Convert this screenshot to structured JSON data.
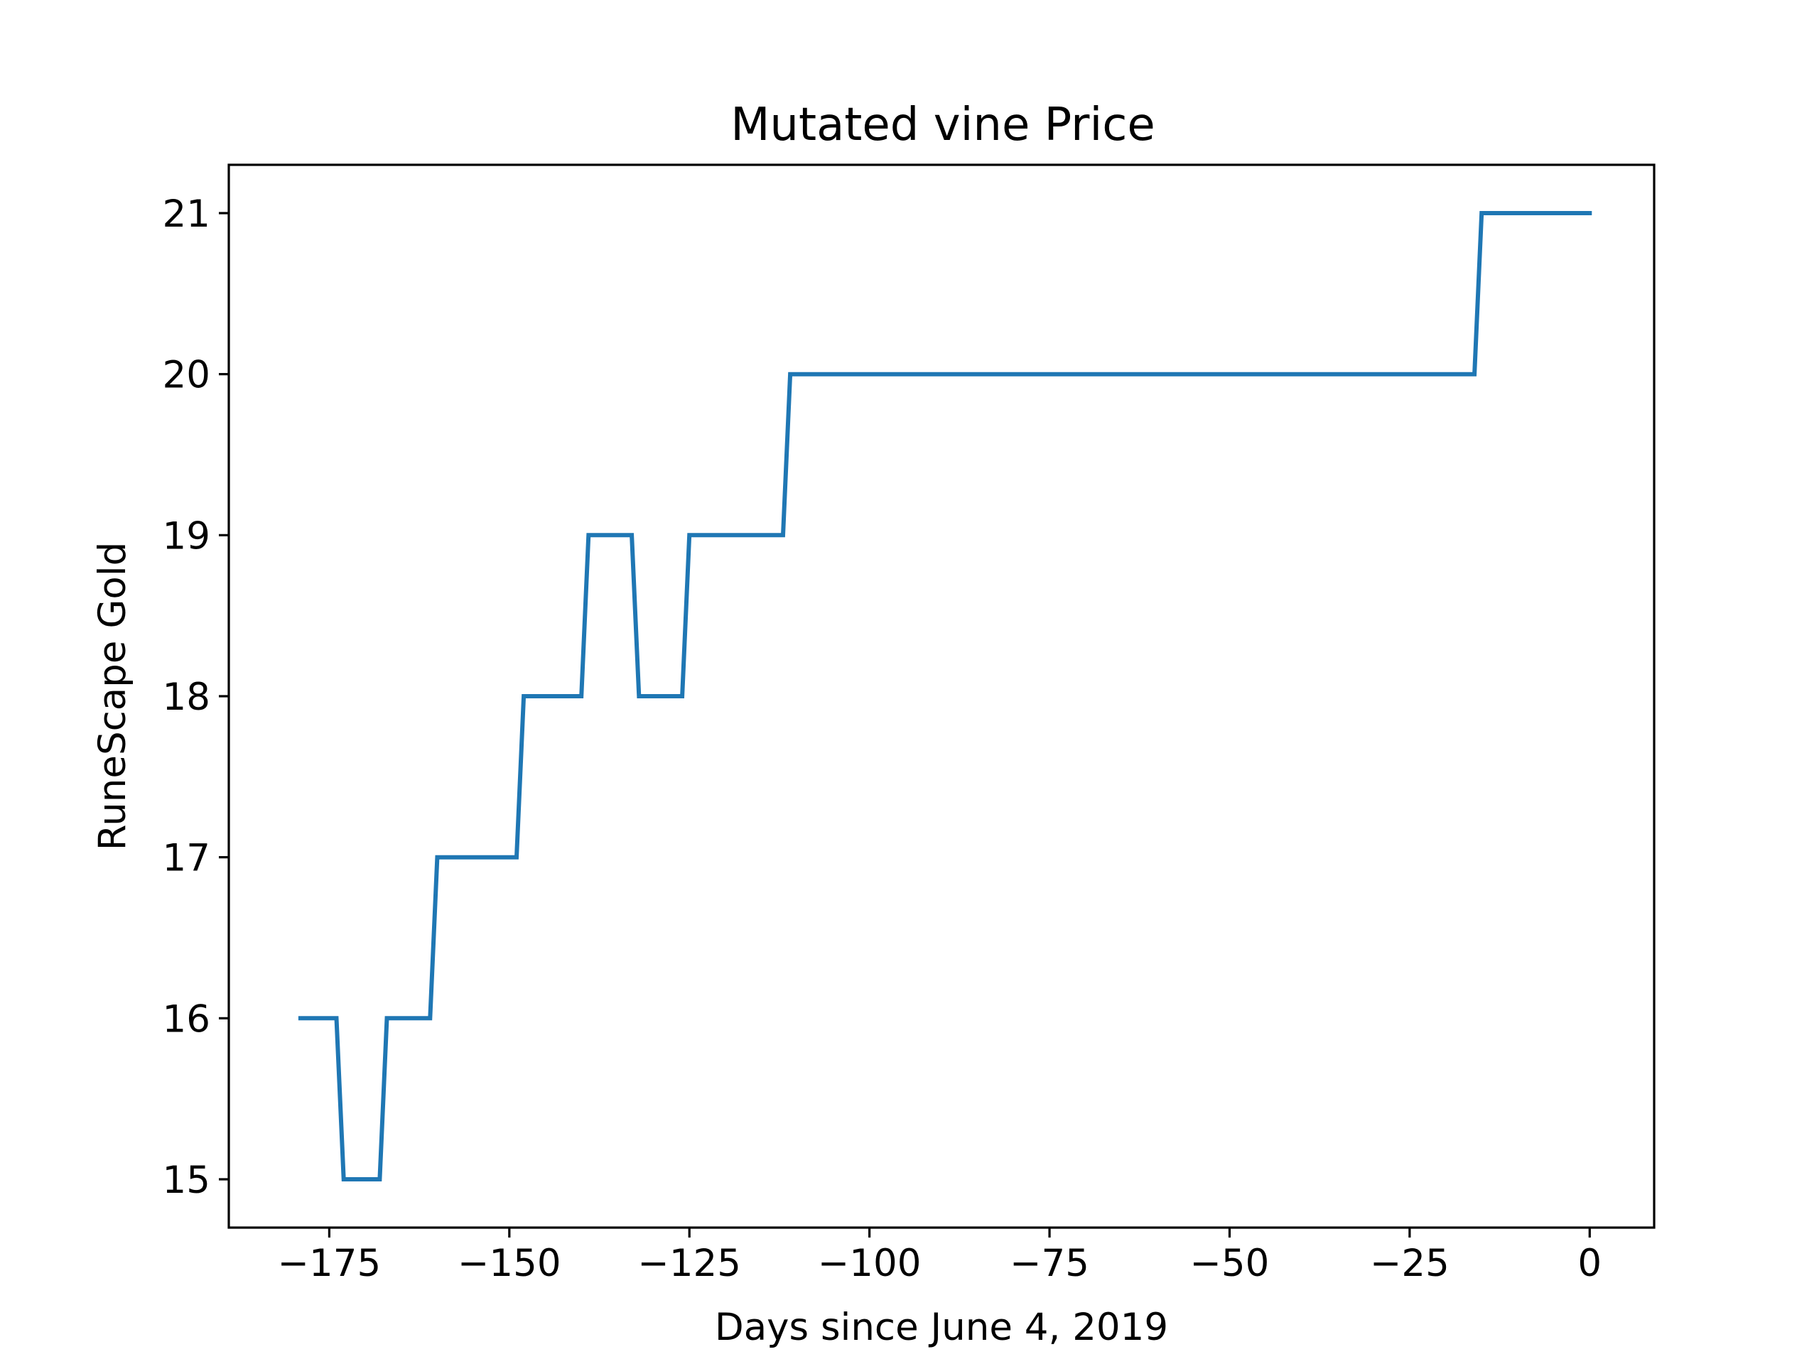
{
  "chart_data": {
    "type": "line",
    "title": "Mutated vine Price",
    "xlabel": "Days since June 4, 2019",
    "ylabel": "RuneScape Gold",
    "xlim": [
      -188.95,
      8.95
    ],
    "ylim": [
      14.7,
      21.3
    ],
    "xticks": [
      -175,
      -150,
      -125,
      -100,
      -75,
      -50,
      -25,
      0
    ],
    "xtick_labels": [
      "−175",
      "−150",
      "−125",
      "−100",
      "−75",
      "−50",
      "−25",
      "0"
    ],
    "yticks": [
      15,
      16,
      17,
      18,
      19,
      20,
      21
    ],
    "ytick_labels": [
      "15",
      "16",
      "17",
      "18",
      "19",
      "20",
      "21"
    ],
    "grid": false,
    "series_color": "#1f77b4",
    "series": [
      {
        "x": [
          -179,
          -174,
          -173,
          -168,
          -167,
          -161,
          -160,
          -149,
          -148,
          -140,
          -139,
          -133,
          -132,
          -126,
          -125,
          -112,
          -111,
          -16,
          -15,
          0
        ],
        "y": [
          16,
          16,
          15,
          15,
          16,
          16,
          17,
          17,
          18,
          18,
          19,
          19,
          18,
          18,
          19,
          19,
          20,
          20,
          21,
          21
        ]
      }
    ]
  }
}
